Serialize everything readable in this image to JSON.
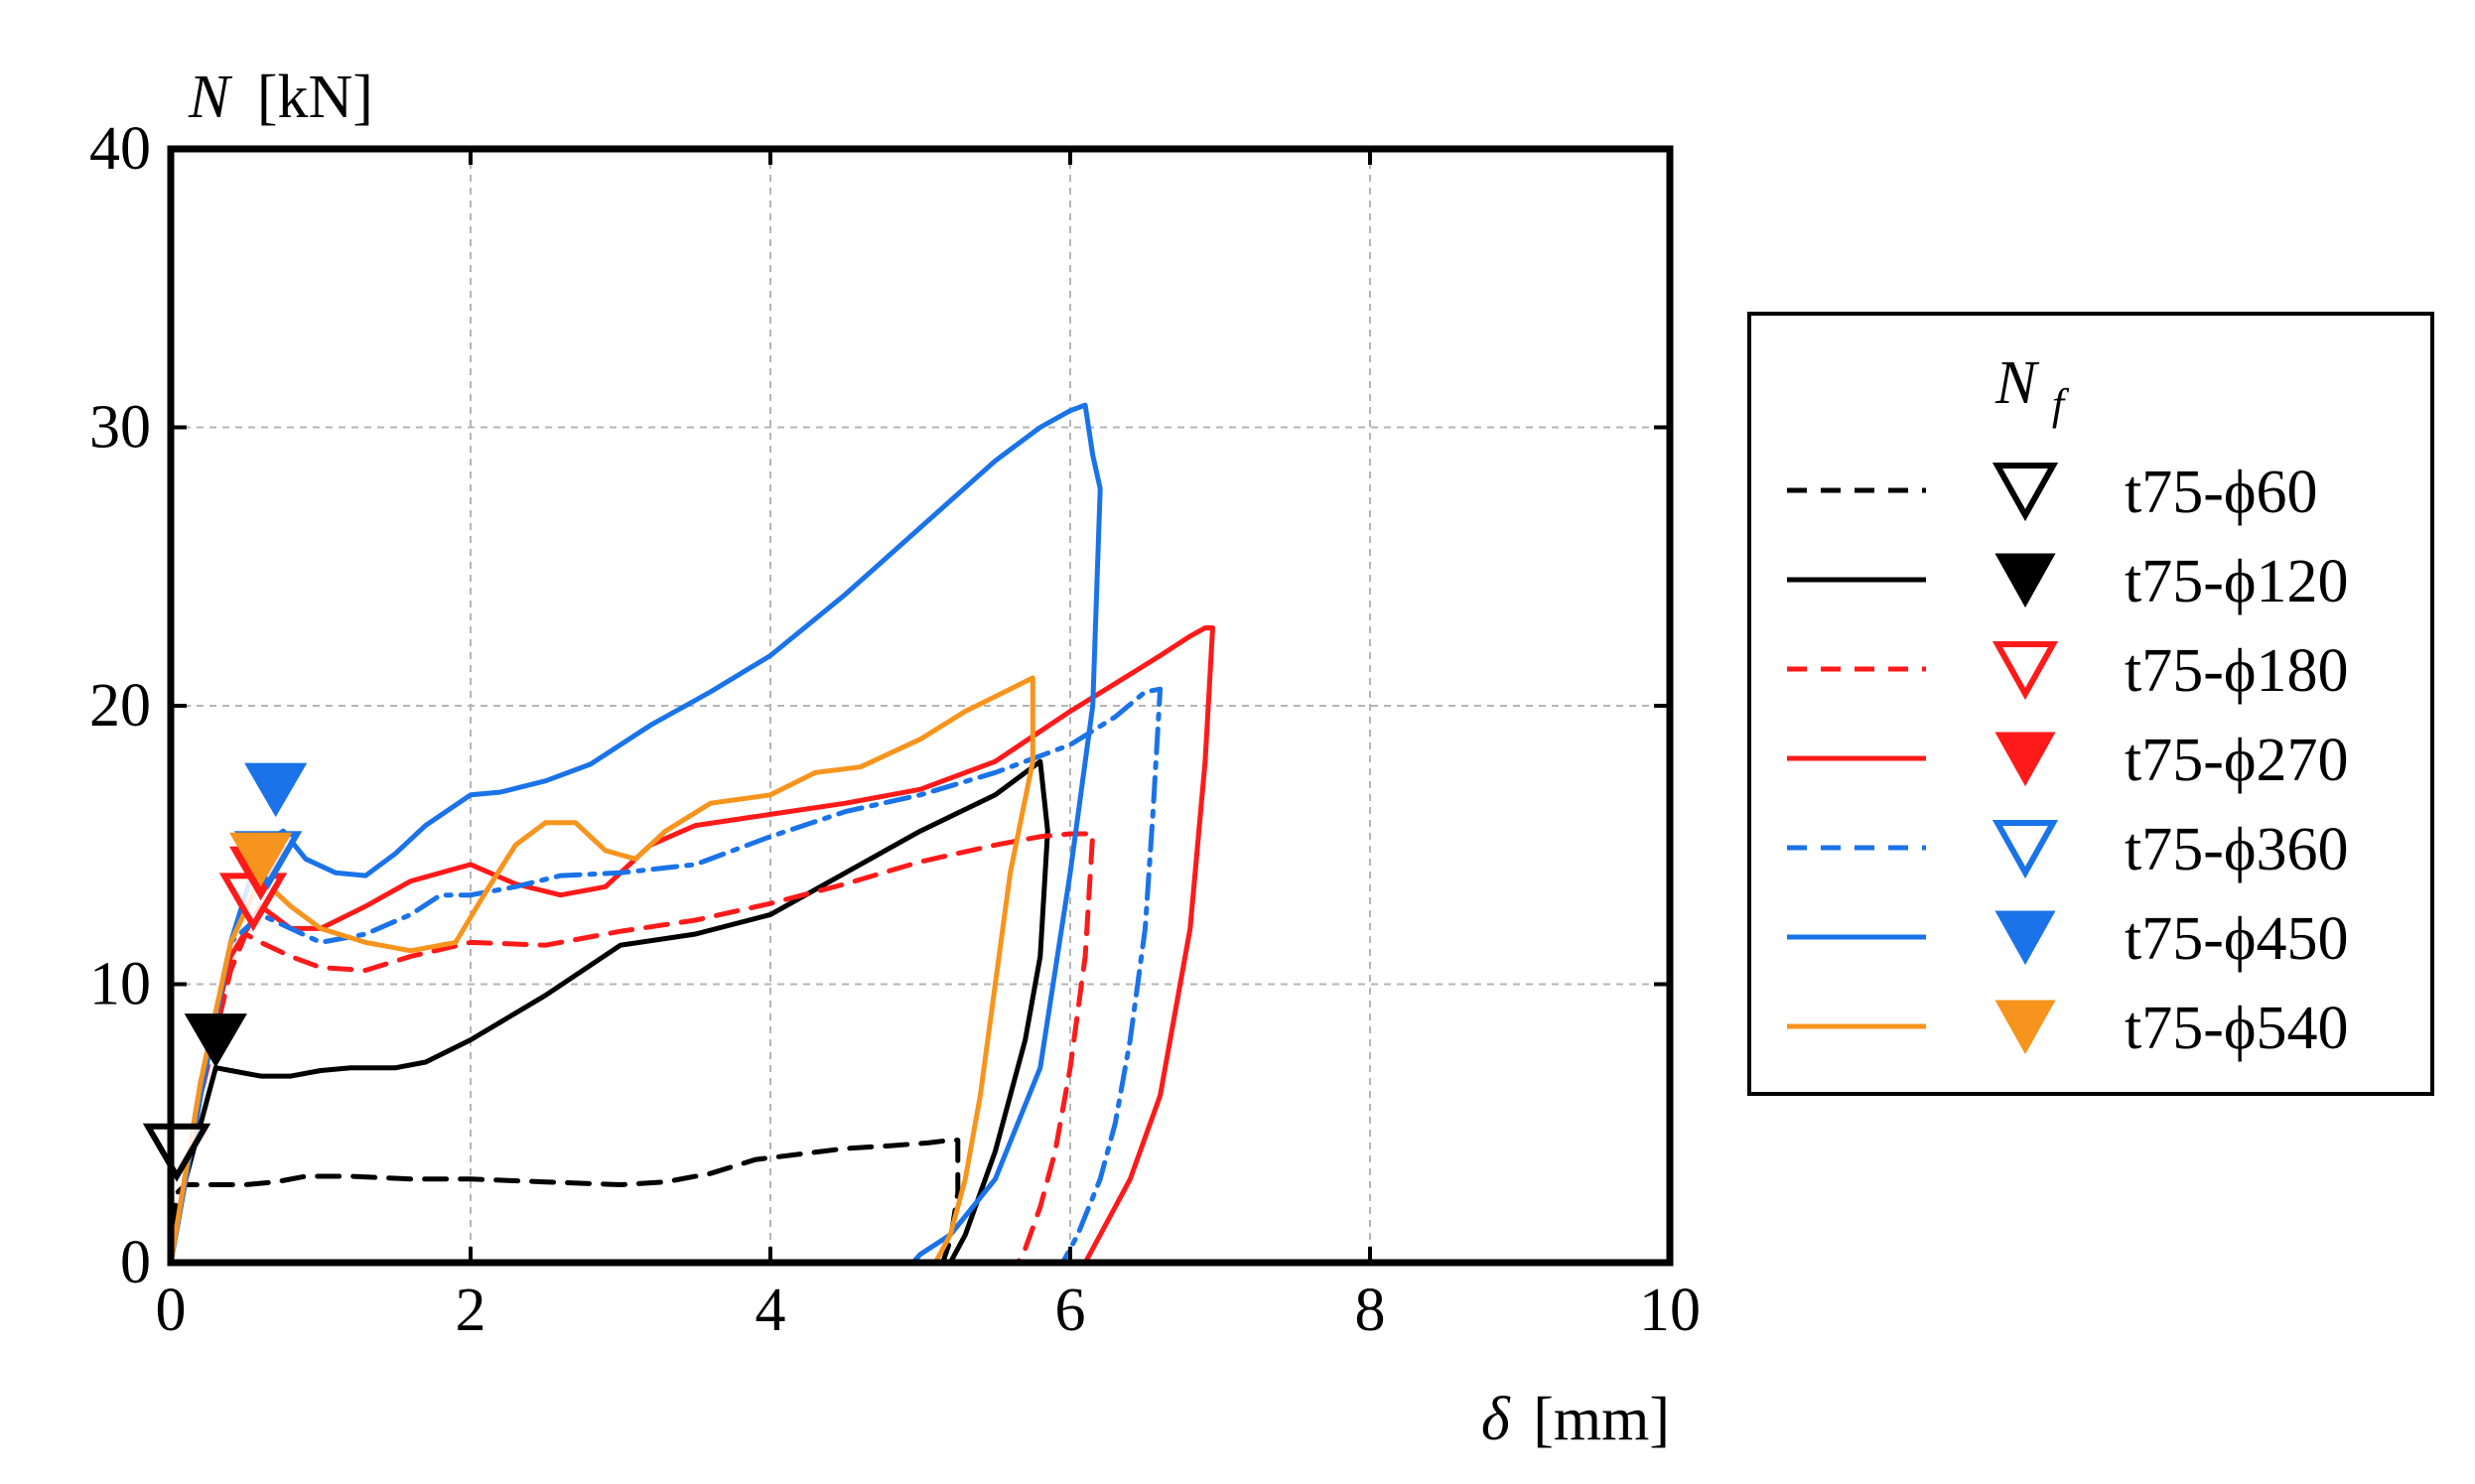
{
  "chart_data": {
    "type": "line",
    "title": "",
    "ylabel_symbol": "N",
    "ylabel_unit": "[kN]",
    "xlabel_symbol": "δ",
    "xlabel_unit": "[mm]",
    "xlim": [
      0,
      10
    ],
    "ylim": [
      0,
      40
    ],
    "xticks": [
      0,
      2,
      4,
      6,
      8,
      10
    ],
    "yticks": [
      0,
      10,
      20,
      30,
      40
    ],
    "xtick_labels": [
      "0",
      "2",
      "4",
      "6",
      "8",
      "10"
    ],
    "ytick_labels": [
      "0",
      "10",
      "20",
      "30",
      "40"
    ],
    "grid": true,
    "legend_title_base": "N",
    "legend_title_sub": "f",
    "legend_position": "right",
    "series": [
      {
        "name": "t75-ϕ60",
        "color": "#000000",
        "dash": "dash",
        "marker_filled": false,
        "marker": [
          0.04,
          4.0
        ],
        "x": [
          0,
          0.04,
          0.1,
          0.2,
          0.5,
          0.7,
          0.9,
          1.2,
          1.6,
          2.0,
          2.5,
          3.0,
          3.3,
          3.6,
          3.9,
          4.2,
          4.5,
          4.8,
          5.05,
          5.2,
          5.25,
          5.25,
          5.2,
          5.15
        ],
        "y": [
          0,
          2.5,
          2.8,
          2.8,
          2.8,
          2.9,
          3.1,
          3.1,
          3.0,
          3.0,
          2.9,
          2.8,
          2.9,
          3.2,
          3.7,
          3.9,
          4.1,
          4.2,
          4.3,
          4.4,
          4.4,
          2.5,
          0.8,
          0
        ]
      },
      {
        "name": "t75-ϕ120",
        "color": "#000000",
        "dash": "solid",
        "marker_filled": true,
        "marker": [
          0.3,
          8.0
        ],
        "x": [
          0,
          0.1,
          0.2,
          0.3,
          0.4,
          0.6,
          0.8,
          1.0,
          1.2,
          1.5,
          1.7,
          2.0,
          2.5,
          3.0,
          3.5,
          4.0,
          4.5,
          5.0,
          5.5,
          5.8,
          5.85,
          5.8,
          5.7,
          5.5,
          5.3,
          5.2
        ],
        "y": [
          0,
          3.0,
          5.0,
          7.0,
          6.9,
          6.7,
          6.7,
          6.9,
          7.0,
          7.0,
          7.2,
          8.0,
          9.6,
          11.4,
          11.8,
          12.5,
          14.0,
          15.5,
          16.8,
          18.0,
          15.5,
          11.0,
          8.0,
          4.0,
          1.0,
          0
        ]
      },
      {
        "name": "t75-ϕ180",
        "color": "#ff1a1a",
        "dash": "dash",
        "marker_filled": false,
        "marker": [
          0.55,
          13.0
        ],
        "x": [
          0,
          0.2,
          0.4,
          0.5,
          0.6,
          0.8,
          1.0,
          1.3,
          1.6,
          2.0,
          2.5,
          3.0,
          3.5,
          4.0,
          4.5,
          5.0,
          5.5,
          5.8,
          6.0,
          6.15,
          6.1,
          6.0,
          5.9,
          5.8,
          5.7,
          5.65
        ],
        "y": [
          0,
          6.0,
          10.5,
          11.8,
          11.5,
          11.0,
          10.6,
          10.5,
          11.0,
          11.5,
          11.4,
          11.9,
          12.3,
          12.9,
          13.6,
          14.4,
          15.0,
          15.3,
          15.4,
          15.4,
          11.0,
          7.0,
          4.0,
          2.0,
          0.5,
          0
        ]
      },
      {
        "name": "t75-ϕ270",
        "color": "#ff1a1a",
        "dash": "solid",
        "marker_filled": true,
        "marker": [
          0.6,
          14.0
        ],
        "x": [
          0,
          0.2,
          0.4,
          0.6,
          0.8,
          1.0,
          1.3,
          1.6,
          2.0,
          2.3,
          2.6,
          2.9,
          3.2,
          3.5,
          4.0,
          4.5,
          5.0,
          5.5,
          6.0,
          6.3,
          6.6,
          6.8,
          6.9,
          6.95,
          6.9,
          6.8,
          6.6,
          6.4,
          6.2,
          6.1
        ],
        "y": [
          0,
          6.5,
          11.0,
          12.8,
          12.0,
          12.0,
          12.8,
          13.7,
          14.3,
          13.6,
          13.2,
          13.5,
          15.0,
          15.7,
          16.1,
          16.5,
          17.0,
          18.0,
          19.8,
          20.8,
          21.8,
          22.5,
          22.8,
          22.8,
          18.0,
          12.0,
          6.0,
          3.0,
          1.0,
          0
        ]
      },
      {
        "name": "t75-ϕ360",
        "color": "#1a73e8",
        "dash": "dashdot",
        "marker_filled": false,
        "marker": [
          0.65,
          14.5
        ],
        "x": [
          0,
          0.2,
          0.4,
          0.6,
          0.8,
          1.0,
          1.3,
          1.6,
          1.8,
          2.0,
          2.3,
          2.6,
          3.0,
          3.5,
          4.0,
          4.5,
          5.0,
          5.5,
          6.0,
          6.3,
          6.5,
          6.6,
          6.55,
          6.5,
          6.4,
          6.3,
          6.2,
          6.05,
          5.95
        ],
        "y": [
          0,
          6.5,
          11.5,
          12.5,
          12.0,
          11.5,
          11.8,
          12.5,
          13.2,
          13.2,
          13.5,
          13.9,
          14.0,
          14.3,
          15.3,
          16.2,
          16.8,
          17.6,
          18.6,
          19.6,
          20.5,
          20.6,
          16.0,
          12.0,
          8.0,
          5.0,
          3.0,
          1.0,
          0
        ]
      },
      {
        "name": "t75-ϕ450",
        "color": "#1a73e8",
        "dash": "solid",
        "marker_filled": true,
        "marker": [
          0.7,
          17.0
        ],
        "x": [
          0,
          0.2,
          0.4,
          0.6,
          0.75,
          0.9,
          1.1,
          1.3,
          1.5,
          1.7,
          2.0,
          2.2,
          2.5,
          2.8,
          3.2,
          3.6,
          4.0,
          4.5,
          5.0,
          5.5,
          5.8,
          6.0,
          6.1,
          6.15,
          6.2,
          6.15,
          6.0,
          5.8,
          5.5,
          5.2,
          5.0,
          4.95
        ],
        "y": [
          0,
          6.0,
          11.5,
          15.0,
          15.5,
          14.5,
          14.0,
          13.9,
          14.7,
          15.7,
          16.8,
          16.9,
          17.3,
          17.9,
          19.3,
          20.5,
          21.8,
          24.0,
          26.4,
          28.8,
          30.0,
          30.6,
          30.8,
          29.0,
          27.8,
          20.0,
          14.0,
          7.0,
          3.0,
          1.0,
          0.3,
          0
        ]
      },
      {
        "name": "t75-ϕ540",
        "color": "#f7941d",
        "dash": "solid",
        "marker_filled": true,
        "marker": [
          0.6,
          14.5
        ],
        "x": [
          0,
          0.2,
          0.4,
          0.6,
          0.8,
          1.0,
          1.3,
          1.6,
          1.9,
          2.1,
          2.3,
          2.5,
          2.7,
          2.9,
          3.1,
          3.3,
          3.6,
          4.0,
          4.3,
          4.6,
          5.0,
          5.3,
          5.6,
          5.75,
          5.75,
          5.6,
          5.5,
          5.4,
          5.3,
          5.2,
          5.1
        ],
        "y": [
          0,
          6.5,
          11.5,
          13.8,
          12.8,
          12.0,
          11.5,
          11.2,
          11.5,
          13.3,
          15.0,
          15.8,
          15.8,
          14.8,
          14.5,
          15.5,
          16.5,
          16.8,
          17.6,
          17.8,
          18.8,
          19.8,
          20.6,
          21.0,
          18.0,
          14.0,
          10.0,
          6.0,
          3.0,
          1.0,
          0
        ]
      }
    ]
  }
}
